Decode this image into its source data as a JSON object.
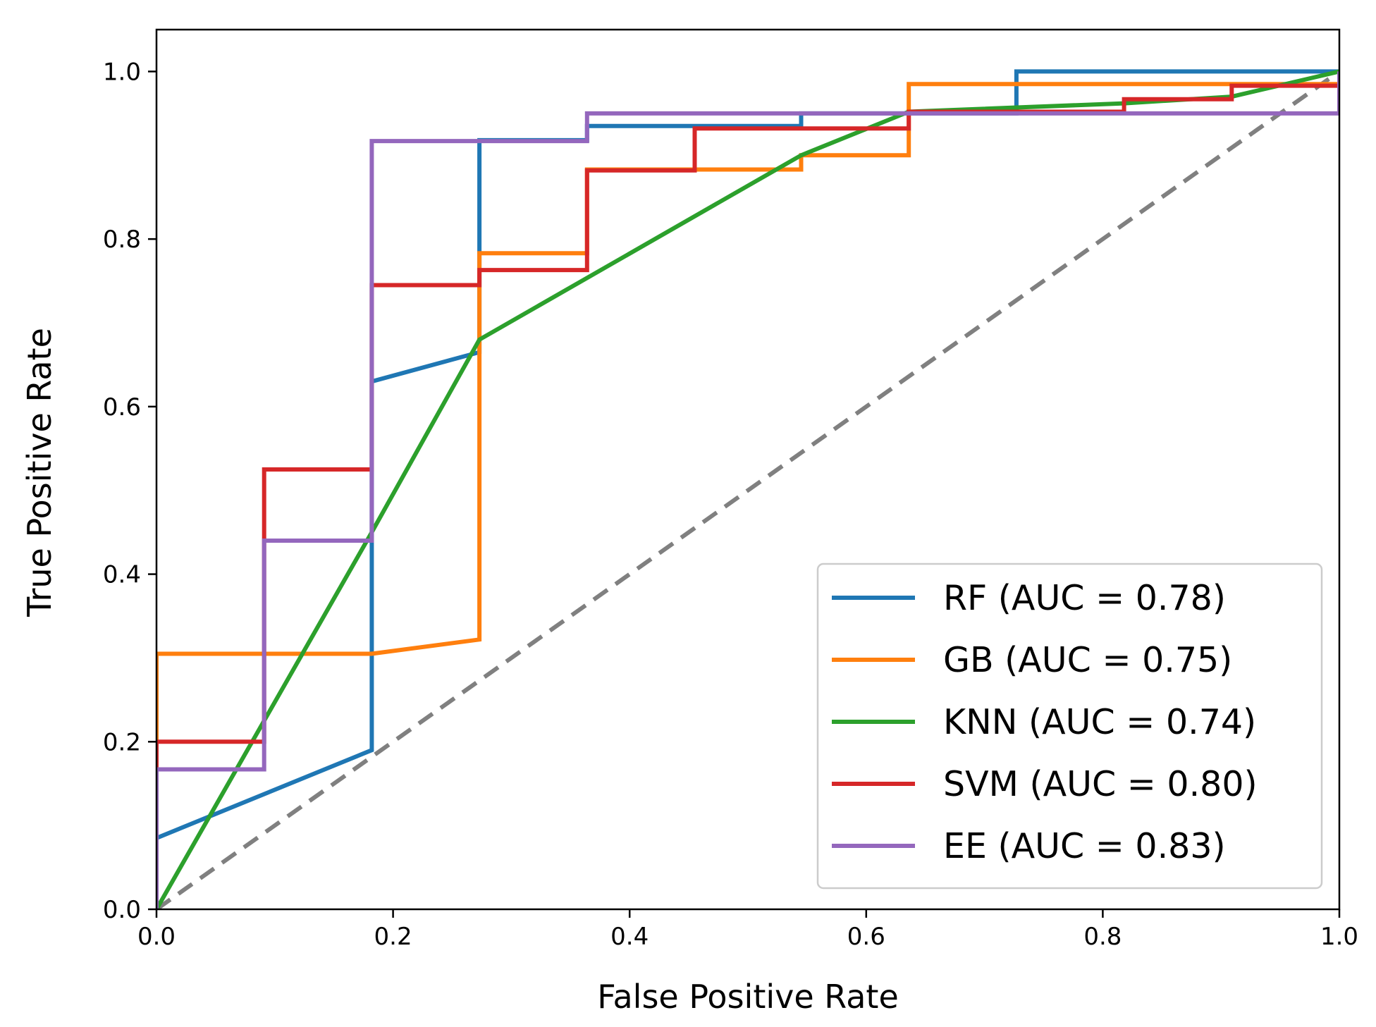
{
  "chart_data": {
    "type": "line",
    "title": "",
    "xlabel": "False Positive Rate",
    "ylabel": "True Positive Rate",
    "xlim": [
      0,
      1
    ],
    "ylim": [
      0,
      1.05
    ],
    "xticks": [
      "0.0",
      "0.2",
      "0.4",
      "0.6",
      "0.8",
      "1.0"
    ],
    "yticks": [
      "0.0",
      "0.2",
      "0.4",
      "0.6",
      "0.8",
      "1.0"
    ],
    "grid": false,
    "legend_position": "lower-right",
    "series": [
      {
        "name": "RF (AUC = 0.78)",
        "color": "#1f77b4",
        "x": [
          0.0,
          0.0,
          0.182,
          0.182,
          0.273,
          0.273,
          0.364,
          0.364,
          0.545,
          0.545,
          0.727,
          0.727,
          1.0
        ],
        "y": [
          0.0,
          0.085,
          0.19,
          0.63,
          0.665,
          0.918,
          0.918,
          0.935,
          0.935,
          0.95,
          0.95,
          1.0,
          1.0
        ]
      },
      {
        "name": "GB (AUC = 0.75)",
        "color": "#ff7f0e",
        "x": [
          0.0,
          0.0,
          0.182,
          0.273,
          0.273,
          0.364,
          0.364,
          0.545,
          0.545,
          0.636,
          0.636,
          1.0
        ],
        "y": [
          0.0,
          0.305,
          0.305,
          0.322,
          0.783,
          0.783,
          0.883,
          0.883,
          0.9,
          0.9,
          0.985,
          0.985
        ]
      },
      {
        "name": "KNN (AUC = 0.74)",
        "color": "#2ca02c",
        "x": [
          0.0,
          0.182,
          0.273,
          0.545,
          0.636,
          0.818,
          0.909,
          1.0
        ],
        "y": [
          0.0,
          0.45,
          0.68,
          0.9,
          0.952,
          0.962,
          0.97,
          1.0
        ]
      },
      {
        "name": "SVM (AUC = 0.80)",
        "color": "#d62728",
        "x": [
          0.0,
          0.0,
          0.091,
          0.091,
          0.182,
          0.182,
          0.273,
          0.273,
          0.364,
          0.364,
          0.455,
          0.455,
          0.636,
          0.636,
          0.818,
          0.818,
          0.909,
          0.909,
          1.0
        ],
        "y": [
          0.0,
          0.2,
          0.2,
          0.525,
          0.525,
          0.745,
          0.745,
          0.763,
          0.763,
          0.882,
          0.882,
          0.932,
          0.932,
          0.952,
          0.952,
          0.967,
          0.967,
          0.983,
          0.983
        ]
      },
      {
        "name": "EE (AUC = 0.83)",
        "color": "#9467bd",
        "x": [
          0.0,
          0.0,
          0.091,
          0.091,
          0.182,
          0.182,
          0.364,
          0.364,
          1.0,
          1.0
        ],
        "y": [
          0.0,
          0.167,
          0.167,
          0.44,
          0.44,
          0.917,
          0.917,
          0.95,
          0.95,
          1.0
        ]
      }
    ],
    "reference_line": {
      "x": [
        0,
        1
      ],
      "y": [
        0,
        1
      ],
      "color": "#808080",
      "style": "dashed"
    }
  }
}
